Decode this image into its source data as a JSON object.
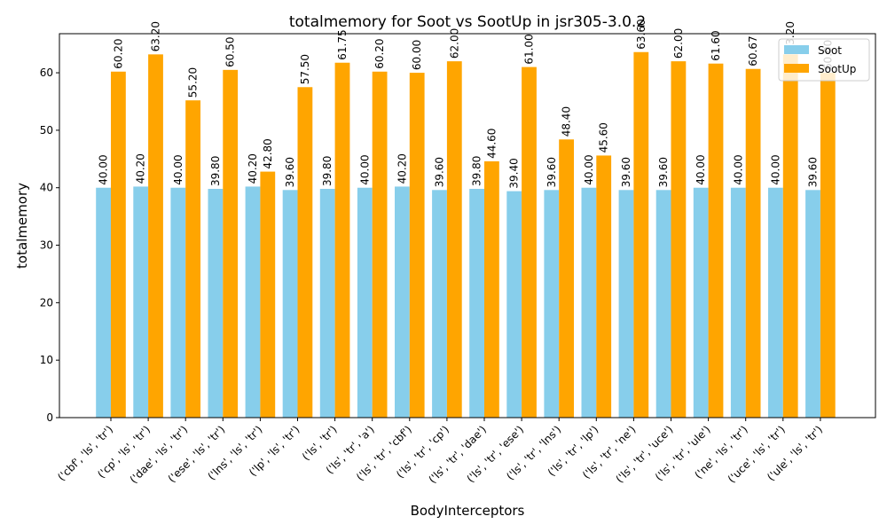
{
  "chart_data": {
    "type": "bar",
    "title": "totalmemory for Soot vs SootUp in jsr305-3.0.2",
    "xlabel": "BodyInterceptors",
    "ylabel": "totalmemory",
    "ylim": [
      0,
      66.8
    ],
    "yticks": [
      0,
      10,
      20,
      30,
      40,
      50,
      60
    ],
    "grid": false,
    "legend_position": "top-right",
    "categories": [
      "('cbf', 'ls', 'tr')",
      "('cp', 'ls', 'tr')",
      "('dae', 'ls', 'tr')",
      "('ese', 'ls', 'tr')",
      "('lns', 'ls', 'tr')",
      "('lp', 'ls', 'tr')",
      "('ls', 'tr')",
      "('ls', 'tr', 'a')",
      "('ls', 'tr', 'cbf')",
      "('ls', 'tr', 'cp')",
      "('ls', 'tr', 'dae')",
      "('ls', 'tr', 'ese')",
      "('ls', 'tr', 'lns')",
      "('ls', 'tr', 'lp')",
      "('ls', 'tr', 'ne')",
      "('ls', 'tr', 'uce')",
      "('ls', 'tr', 'ule')",
      "('ne', 'ls', 'tr')",
      "('uce', 'ls', 'tr')",
      "('ule', 'ls', 'tr')"
    ],
    "series": [
      {
        "name": "Soot",
        "color": "#87ceeb",
        "values": [
          40.0,
          40.2,
          40.0,
          39.8,
          40.2,
          39.6,
          39.8,
          40.0,
          40.2,
          39.6,
          39.8,
          39.4,
          39.6,
          40.0,
          39.6,
          39.6,
          40.0,
          40.0,
          40.0,
          39.6
        ],
        "labels": [
          "40.00",
          "40.20",
          "40.00",
          "39.80",
          "40.20",
          "39.60",
          "39.80",
          "40.00",
          "40.20",
          "39.60",
          "39.80",
          "39.40",
          "39.60",
          "40.00",
          "39.60",
          "39.60",
          "40.00",
          "40.00",
          "40.00",
          "39.60"
        ]
      },
      {
        "name": "SootUp",
        "color": "#ffa500",
        "values": [
          60.2,
          63.2,
          55.2,
          60.5,
          42.8,
          57.5,
          61.75,
          60.2,
          60.0,
          62.0,
          44.6,
          61.0,
          48.4,
          45.6,
          63.6,
          62.0,
          61.6,
          60.67,
          63.2,
          60.0
        ],
        "labels": [
          "60.20",
          "63.20",
          "55.20",
          "60.50",
          "42.80",
          "57.50",
          "61.75",
          "60.20",
          "60.00",
          "62.00",
          "44.60",
          "61.00",
          "48.40",
          "45.60",
          "63.60",
          "62.00",
          "61.60",
          "60.67",
          "63.20",
          "60.00"
        ]
      }
    ]
  }
}
